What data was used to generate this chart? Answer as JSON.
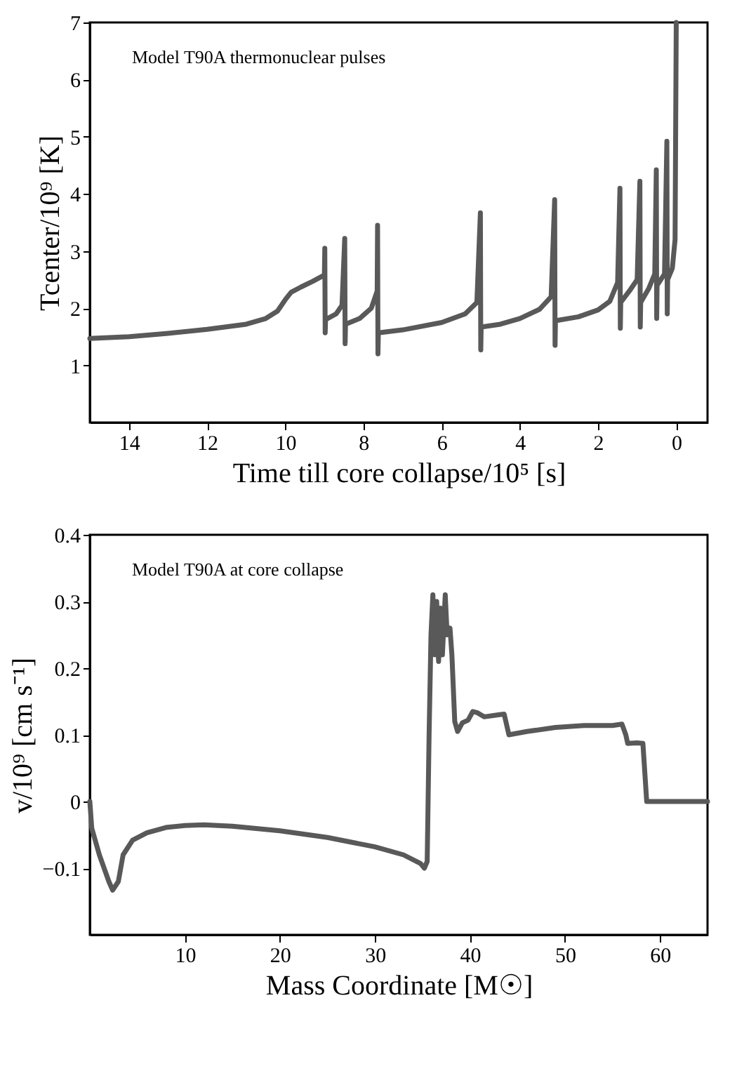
{
  "chart_data": [
    {
      "type": "line",
      "xlabel": "Time till core collapse/10⁵ [s]",
      "ylabel": "Tcenter/10⁹ [K]",
      "annotations": [
        "Model T90A thermonuclear pulses"
      ],
      "xlim": [
        15,
        -0.8
      ],
      "ylim": [
        0,
        7
      ],
      "xticks": [
        14,
        12,
        10,
        8,
        6,
        4,
        2,
        0
      ],
      "yticks": [
        1,
        2,
        3,
        4,
        5,
        6,
        7
      ],
      "grid": false,
      "series": [
        {
          "color": "#595959",
          "x": [
            15,
            14,
            13,
            12,
            11,
            10.5,
            10.2,
            10.0,
            9.85,
            9.6,
            9.3,
            9.0,
            8.99,
            8.98,
            8.97,
            8.7,
            8.55,
            8.48,
            8.47,
            8.46,
            8.1,
            7.8,
            7.65,
            7.64,
            7.63,
            7.62,
            7.0,
            6.0,
            5.4,
            5.1,
            5.01,
            5.0,
            4.99,
            4.5,
            4.0,
            3.5,
            3.2,
            3.11,
            3.1,
            3.09,
            2.5,
            2.0,
            1.7,
            1.5,
            1.44,
            1.43,
            1.42,
            1.2,
            1.0,
            0.93,
            0.92,
            0.91,
            0.7,
            0.55,
            0.51,
            0.5,
            0.49,
            0.3,
            0.24,
            0.23,
            0.22,
            0.1,
            0.03,
            0.0
          ],
          "values": [
            1.47,
            1.5,
            1.56,
            1.63,
            1.72,
            1.82,
            1.95,
            2.15,
            2.28,
            2.37,
            2.47,
            2.58,
            3.05,
            1.57,
            1.8,
            1.9,
            2.05,
            3.22,
            1.38,
            1.72,
            1.82,
            2.0,
            2.3,
            3.45,
            1.2,
            1.57,
            1.62,
            1.75,
            1.9,
            2.1,
            3.67,
            1.27,
            1.67,
            1.72,
            1.82,
            1.98,
            2.2,
            3.9,
            1.35,
            1.78,
            1.85,
            1.97,
            2.12,
            2.45,
            4.1,
            1.65,
            2.1,
            2.3,
            2.5,
            4.22,
            1.67,
            2.1,
            2.35,
            2.6,
            4.42,
            1.82,
            2.4,
            2.6,
            4.92,
            1.9,
            2.5,
            2.7,
            3.2,
            7.0
          ]
        }
      ]
    },
    {
      "type": "line",
      "xlabel": "Mass Coordinate [M☉]",
      "ylabel": "v/10⁹ [cm s⁻¹]",
      "annotations": [
        "Model T90A at core collapse"
      ],
      "xlim": [
        0,
        65
      ],
      "ylim": [
        -0.2,
        0.4
      ],
      "xticks": [
        10,
        20,
        30,
        40,
        50,
        60
      ],
      "yticks": [
        -0.1,
        0,
        0.1,
        0.2,
        0.3,
        0.4
      ],
      "grid": false,
      "series": [
        {
          "color": "#595959",
          "x": [
            0,
            0.2,
            1,
            2,
            2.4,
            3,
            3.5,
            4.5,
            6,
            8,
            10,
            12,
            15,
            20,
            25,
            30,
            33,
            34.8,
            35.2,
            35.5,
            35.7,
            35.9,
            36.1,
            36.3,
            36.5,
            36.7,
            36.9,
            37.1,
            37.4,
            37.6,
            37.9,
            38.1,
            38.4,
            38.7,
            39.2,
            39.8,
            40.3,
            40.8,
            41.5,
            43,
            43.6,
            44.1,
            46,
            49,
            52,
            55,
            56,
            56.4,
            56.6,
            57.6,
            58.2,
            58.6,
            65
          ],
          "values": [
            0,
            -0.04,
            -0.08,
            -0.12,
            -0.133,
            -0.12,
            -0.08,
            -0.058,
            -0.047,
            -0.039,
            -0.036,
            -0.035,
            -0.037,
            -0.044,
            -0.054,
            -0.068,
            -0.08,
            -0.093,
            -0.1,
            -0.09,
            0.1,
            0.25,
            0.31,
            0.22,
            0.3,
            0.21,
            0.29,
            0.22,
            0.31,
            0.25,
            0.26,
            0.22,
            0.12,
            0.105,
            0.118,
            0.122,
            0.135,
            0.133,
            0.127,
            0.13,
            0.131,
            0.1,
            0.105,
            0.111,
            0.114,
            0.114,
            0.116,
            0.1,
            0.087,
            0.088,
            0.087,
            0.0,
            0.0
          ]
        }
      ]
    }
  ]
}
